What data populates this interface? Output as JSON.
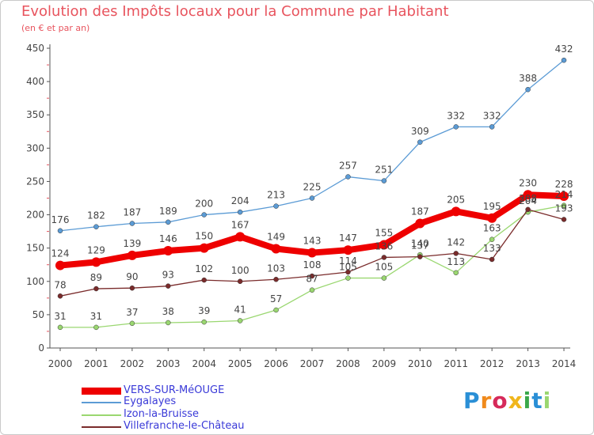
{
  "header": {
    "title": "Evolution des Impôts locaux pour la Commune par Habitant",
    "subtitle": "(en € et par an)"
  },
  "logo": {
    "text": "Proxiti"
  },
  "colors": {
    "title": "#e8545e",
    "legend_text": "#3a3ad8",
    "axis": "#555555",
    "tick_marks": "#e8545e"
  },
  "chart_data": {
    "type": "line",
    "categories": [
      "2000",
      "2001",
      "2002",
      "2003",
      "2004",
      "2005",
      "2006",
      "2007",
      "2008",
      "2009",
      "2010",
      "2011",
      "2012",
      "2013",
      "2014"
    ],
    "ylim": [
      0,
      450
    ],
    "yticks": [
      0,
      50,
      100,
      150,
      200,
      250,
      300,
      350,
      400,
      450
    ],
    "grid": false,
    "legend_position": "bottom-left",
    "series": [
      {
        "name": "VERS-SUR-MéOUGE",
        "color": "#ee0000",
        "values": [
          124,
          129,
          139,
          146,
          150,
          167,
          149,
          143,
          147,
          155,
          187,
          205,
          195,
          230,
          228
        ],
        "labels": [
          "124",
          "129",
          "139",
          "146",
          "150",
          "167",
          "149",
          "143",
          "147",
          "155",
          "187",
          "205",
          "195",
          "230",
          "228"
        ]
      },
      {
        "name": "Eygalayes",
        "color": "#5b9bd5",
        "values": [
          176,
          182,
          187,
          189,
          200,
          204,
          213,
          225,
          257,
          251,
          309,
          332,
          332,
          388,
          432
        ],
        "labels": [
          "176",
          "182",
          "187",
          "189",
          "200",
          "204",
          "213",
          "225",
          "257",
          "251",
          "309",
          "332",
          "332",
          "388",
          "432"
        ]
      },
      {
        "name": "Izon-la-Bruisse",
        "color": "#9ad770",
        "values": [
          31,
          31,
          37,
          38,
          39,
          41,
          57,
          87,
          105,
          105,
          140,
          113,
          163,
          204,
          214
        ],
        "labels": [
          "31",
          "31",
          "37",
          "38",
          "39",
          "41",
          "57",
          "87",
          "105",
          "105",
          "140",
          "113",
          "163",
          "204",
          "214"
        ]
      },
      {
        "name": "Villefranche-le-Château",
        "color": "#7a2b2b",
        "values": [
          78,
          89,
          90,
          93,
          102,
          100,
          103,
          108,
          114,
          136,
          137,
          142,
          133,
          208,
          193
        ],
        "labels": [
          "78",
          "89",
          "90",
          "93",
          "102",
          "100",
          "103",
          "108",
          "114",
          "136",
          "137",
          "142",
          "133",
          "208",
          "193"
        ]
      }
    ]
  }
}
